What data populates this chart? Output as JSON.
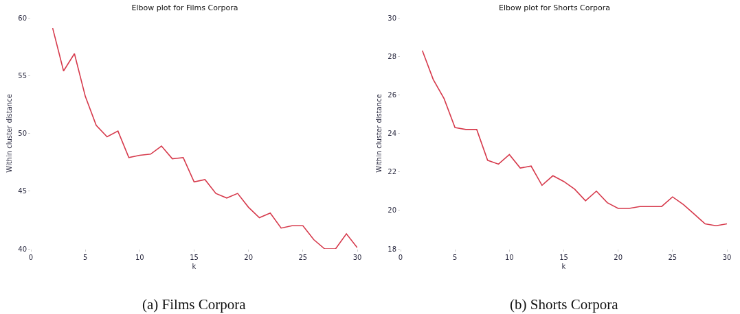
{
  "chart_data": [
    {
      "type": "line",
      "title": "Elbow plot for Films Corpora",
      "xlabel": "k",
      "ylabel": "Within cluster distance",
      "annotations": [
        "(a) Films Corpora"
      ],
      "x": [
        2,
        3,
        4,
        5,
        6,
        7,
        8,
        9,
        10,
        11,
        12,
        13,
        14,
        15,
        16,
        17,
        18,
        19,
        20,
        21,
        22,
        23,
        24,
        25,
        26,
        27,
        28,
        29,
        30
      ],
      "series": [
        {
          "color": "#d6394b",
          "values": [
            59.1,
            55.4,
            56.9,
            53.2,
            50.7,
            49.7,
            50.2,
            47.9,
            48.1,
            48.2,
            48.9,
            47.8,
            47.9,
            45.8,
            46.0,
            44.8,
            44.4,
            44.8,
            43.6,
            42.7,
            43.1,
            41.8,
            42.0,
            42.0,
            40.8,
            40.0,
            40.0,
            41.3,
            40.1
          ]
        }
      ],
      "xlim": [
        0,
        30
      ],
      "xticks": [
        0,
        5,
        10,
        15,
        20,
        25,
        30
      ],
      "ylim": [
        40,
        60
      ],
      "yticks": [
        40,
        45,
        50,
        55,
        60
      ],
      "marker": "none",
      "line_style": "solid"
    },
    {
      "type": "line",
      "title": "Elbow plot for Shorts Corpora",
      "xlabel": "k",
      "ylabel": "Within cluster distance",
      "annotations": [
        "(b) Shorts Corpora"
      ],
      "x": [
        2,
        3,
        4,
        5,
        6,
        7,
        8,
        9,
        10,
        11,
        12,
        13,
        14,
        15,
        16,
        17,
        18,
        19,
        20,
        21,
        22,
        23,
        24,
        25,
        26,
        27,
        28,
        29,
        30
      ],
      "series": [
        {
          "color": "#d6394b",
          "values": [
            28.3,
            26.8,
            25.8,
            24.3,
            24.2,
            24.2,
            22.6,
            22.4,
            22.9,
            22.2,
            22.3,
            21.3,
            21.8,
            21.5,
            21.1,
            20.5,
            21.0,
            20.4,
            20.1,
            20.1,
            20.2,
            20.2,
            20.2,
            20.7,
            20.3,
            19.8,
            19.3,
            19.2,
            19.3
          ]
        }
      ],
      "xlim": [
        0,
        30
      ],
      "xticks": [
        0,
        5,
        10,
        15,
        20,
        25,
        30
      ],
      "ylim": [
        18,
        30
      ],
      "yticks": [
        18,
        20,
        22,
        24,
        26,
        28,
        30
      ],
      "marker": "none",
      "line_style": "solid"
    }
  ]
}
